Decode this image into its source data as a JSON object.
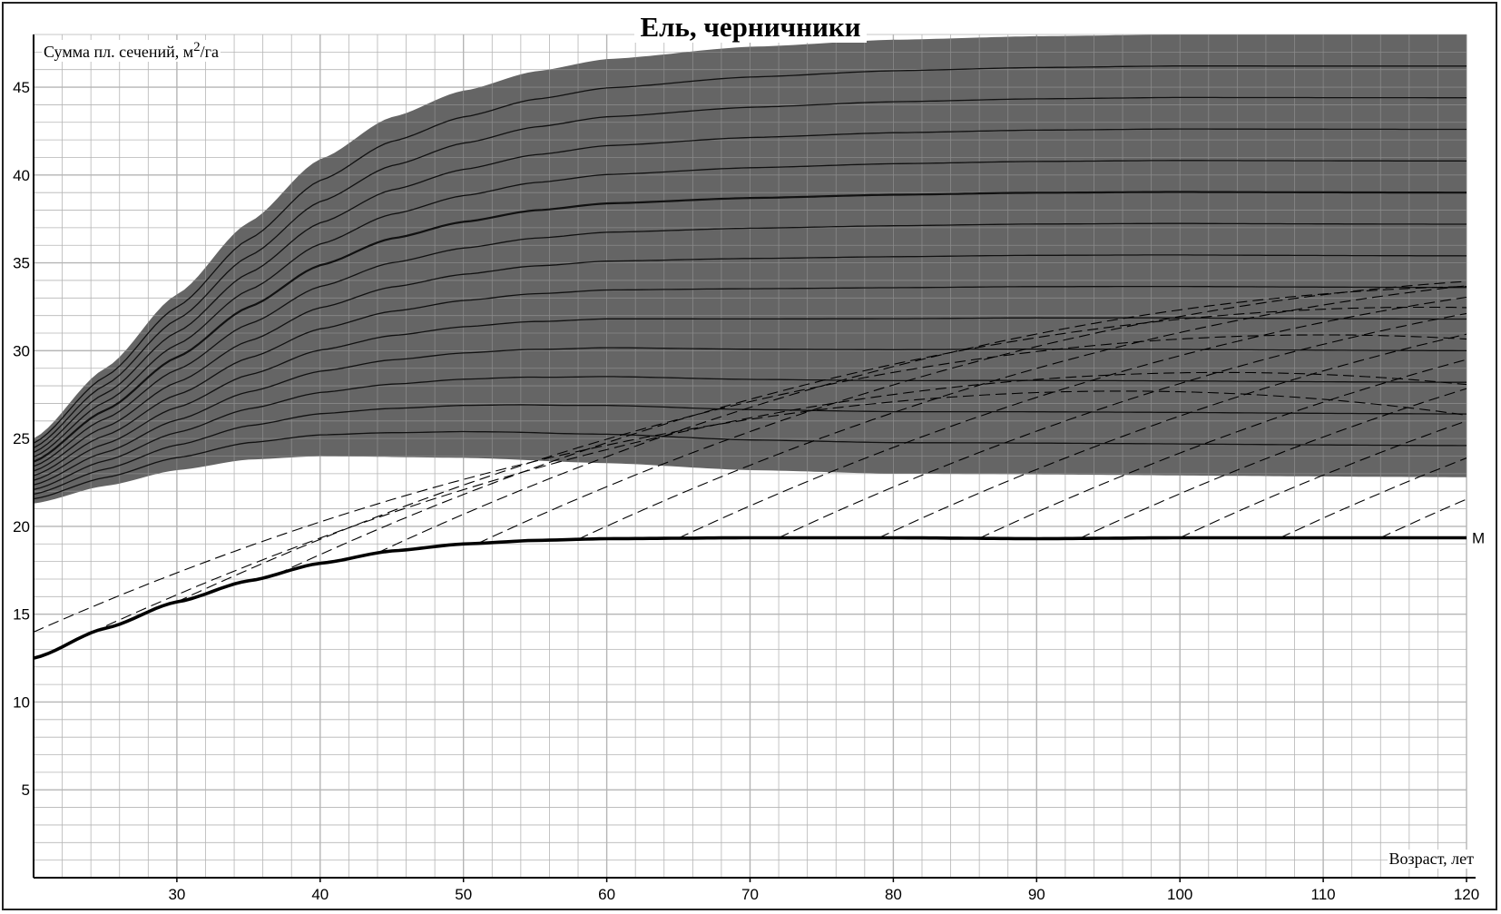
{
  "chart_data": {
    "type": "line",
    "title": "Ель, черничники",
    "xlabel": "Возраст, лет",
    "ylabel_main": "Сумма пл. сечений, м",
    "ylabel_sup": "2",
    "ylabel_tail": "/га",
    "xlim": [
      20,
      120
    ],
    "ylim": [
      0,
      48
    ],
    "x_ticks": [
      "30",
      "40",
      "50",
      "60",
      "70",
      "80",
      "90",
      "100",
      "110",
      "120"
    ],
    "y_ticks": [
      "5",
      "10",
      "15",
      "20",
      "25",
      "30",
      "35",
      "40",
      "45"
    ],
    "grid": true,
    "colors": {
      "band": "#595959",
      "line": "#000000",
      "grid": "#b5b5b5"
    },
    "band": {
      "upper": [
        [
          20,
          25
        ],
        [
          25,
          29
        ],
        [
          30,
          33.2
        ],
        [
          35,
          37.3
        ],
        [
          40,
          40.9
        ],
        [
          45,
          43.3
        ],
        [
          50,
          44.8
        ],
        [
          55,
          45.9
        ],
        [
          60,
          46.6
        ],
        [
          70,
          47.3
        ],
        [
          80,
          47.7
        ],
        [
          90,
          47.9
        ],
        [
          100,
          48
        ],
        [
          120,
          48
        ]
      ],
      "lower": [
        [
          20,
          21.3
        ],
        [
          25,
          22.3
        ],
        [
          30,
          23.2
        ],
        [
          35,
          23.8
        ],
        [
          40,
          24
        ],
        [
          50,
          23.9
        ],
        [
          60,
          23.6
        ],
        [
          70,
          23.2
        ],
        [
          80,
          23
        ],
        [
          120,
          22.8
        ]
      ]
    },
    "series": [
      {
        "name": "M",
        "label": "М",
        "x": [
          20,
          25,
          30,
          35,
          40,
          45,
          50,
          55,
          60,
          70,
          80,
          90,
          100,
          110,
          120
        ],
        "y": [
          12.5,
          14.2,
          15.7,
          16.9,
          17.9,
          18.6,
          19,
          19.2,
          19.3,
          19.35,
          19.35,
          19.3,
          19.35,
          19.35,
          19.35
        ]
      }
    ]
  }
}
